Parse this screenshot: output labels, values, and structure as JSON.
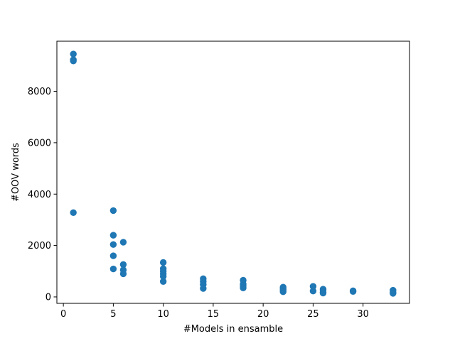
{
  "chart_data": {
    "type": "scatter",
    "xlabel": "#Models in ensamble",
    "ylabel": "#OOV words",
    "xlim": [
      -0.65,
      34.65
    ],
    "ylim": [
      -250,
      9950
    ],
    "xticks": [
      0,
      5,
      10,
      15,
      20,
      25,
      30
    ],
    "yticks": [
      0,
      2000,
      4000,
      6000,
      8000
    ],
    "grid": false,
    "marker_color": "#1f77b4",
    "series": [
      {
        "points": [
          [
            1,
            9450
          ],
          [
            1,
            9230
          ],
          [
            1,
            9180
          ],
          [
            1,
            3280
          ],
          [
            5,
            3360
          ],
          [
            5,
            2400
          ],
          [
            5,
            2040
          ],
          [
            5,
            1600
          ],
          [
            5,
            1090
          ],
          [
            6,
            2130
          ],
          [
            6,
            1260
          ],
          [
            6,
            1050
          ],
          [
            6,
            900
          ],
          [
            10,
            1340
          ],
          [
            10,
            1100
          ],
          [
            10,
            1000
          ],
          [
            10,
            900
          ],
          [
            10,
            800
          ],
          [
            10,
            600
          ],
          [
            14,
            710
          ],
          [
            14,
            600
          ],
          [
            14,
            480
          ],
          [
            14,
            330
          ],
          [
            18,
            650
          ],
          [
            18,
            500
          ],
          [
            18,
            430
          ],
          [
            18,
            350
          ],
          [
            22,
            380
          ],
          [
            22,
            320
          ],
          [
            22,
            260
          ],
          [
            22,
            200
          ],
          [
            25,
            410
          ],
          [
            25,
            230
          ],
          [
            26,
            300
          ],
          [
            26,
            240
          ],
          [
            26,
            180
          ],
          [
            26,
            150
          ],
          [
            29,
            240
          ],
          [
            29,
            210
          ],
          [
            33,
            260
          ],
          [
            33,
            180
          ],
          [
            33,
            140
          ]
        ]
      }
    ]
  }
}
